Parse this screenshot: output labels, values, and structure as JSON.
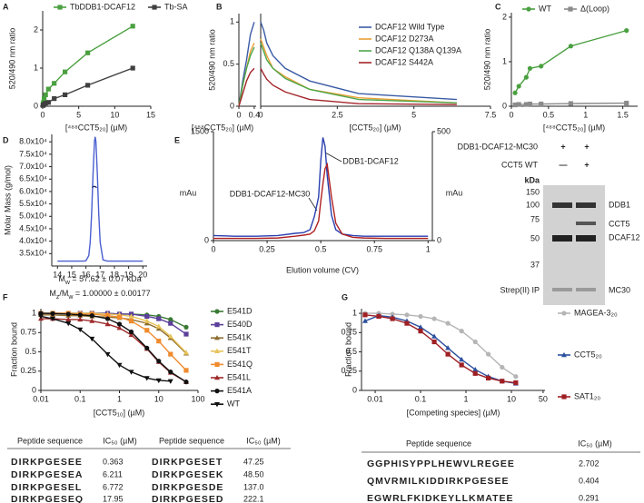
{
  "chart_data": [
    {
      "type": "line",
      "panel": "A",
      "ylabel": "520/490 nm ratio",
      "xlabel": "[⁴⁸⁸CCT5₂₀] (µM)",
      "x": [
        0.05,
        0.1,
        0.2,
        0.4,
        0.8,
        1.6,
        3.1,
        6.25,
        12.5
      ],
      "series": [
        {
          "name": "TbDDB1-DCAF12",
          "color": "#4aa040",
          "marker": "square",
          "values": [
            0.05,
            0.1,
            0.2,
            0.3,
            0.45,
            0.6,
            0.9,
            1.4,
            2.1
          ]
        },
        {
          "name": "Tb-SA",
          "color": "#404040",
          "marker": "square",
          "values": [
            0.02,
            0.03,
            0.05,
            0.08,
            0.1,
            0.2,
            0.3,
            0.55,
            1.0
          ]
        }
      ],
      "xlim": [
        0,
        15
      ],
      "ylim": [
        0,
        2.5
      ],
      "xticks": [
        0,
        5,
        10,
        15
      ],
      "yticks": [
        0,
        1,
        2
      ],
      "legend": "top"
    },
    {
      "type": "line",
      "panel": "B",
      "ylabel": "520/490 nm ratio",
      "xlabel": "[⁴⁸⁸CCT5₂₀] (µM)",
      "x": [
        0,
        0.1,
        0.2,
        0.3,
        0.4
      ],
      "series": [
        {
          "color": "#3b5ba5",
          "values": [
            0,
            0.3,
            0.55,
            0.85,
            1.0
          ]
        },
        {
          "color": "#eaa035",
          "values": [
            0,
            0.25,
            0.45,
            0.65,
            0.75
          ]
        },
        {
          "color": "#4da64a",
          "values": [
            0,
            0.25,
            0.45,
            0.6,
            0.7
          ]
        },
        {
          "color": "#a3242a",
          "values": [
            0,
            0.15,
            0.3,
            0.4,
            0.45
          ]
        }
      ],
      "xlim": [
        0,
        0.45
      ],
      "ylim": [
        0,
        1.1
      ],
      "xticks": [
        0,
        0.4
      ],
      "yticks": [
        0,
        0.5,
        1
      ]
    },
    {
      "type": "line",
      "xlabel": "[CCT5₂₀] (µM)",
      "x": [
        0,
        0.1,
        0.2,
        0.4,
        0.8,
        1.6,
        3.2,
        6.4
      ],
      "series": [
        {
          "name": "DCAF12 Wild Type",
          "color": "#3b5ba5",
          "values": [
            1.0,
            0.9,
            0.75,
            0.6,
            0.45,
            0.3,
            0.15,
            0.08
          ]
        },
        {
          "name": "DCAF12 D273A",
          "color": "#eaa035",
          "values": [
            0.8,
            0.7,
            0.6,
            0.45,
            0.35,
            0.2,
            0.1,
            0.04
          ]
        },
        {
          "name": "DCAF12 Q138A Q139A",
          "color": "#4da64a",
          "values": [
            0.75,
            0.65,
            0.55,
            0.45,
            0.33,
            0.2,
            0.08,
            0.04
          ]
        },
        {
          "name": "DCAF12 S442A",
          "color": "#a3242a",
          "values": [
            0.45,
            0.38,
            0.32,
            0.25,
            0.17,
            0.08,
            0.03,
            0.02
          ]
        }
      ],
      "xlim": [
        0,
        7.5
      ],
      "ylim": [
        0,
        1.1
      ],
      "xticks": [
        0,
        2.5,
        5,
        7.5
      ],
      "legend": "upper right"
    },
    {
      "type": "line",
      "panel": "C",
      "ylabel": "520/490 nm ratio",
      "xlabel": "[⁴⁸⁸CCT5₂₀] (µM)",
      "x": [
        0.05,
        0.1,
        0.2,
        0.25,
        0.4,
        0.8,
        1.55
      ],
      "series": [
        {
          "name": "WT",
          "color": "#4aa040",
          "marker": "circle",
          "values": [
            0.3,
            0.45,
            0.65,
            0.85,
            0.9,
            1.35,
            1.7
          ]
        },
        {
          "name": "Δ(Loop)",
          "color": "#8a8a8a",
          "marker": "square",
          "values": [
            0.03,
            0.04,
            0.04,
            0.05,
            0.05,
            0.06,
            0.07
          ]
        }
      ],
      "xlim": [
        0,
        1.7
      ],
      "ylim": [
        0,
        2.1
      ],
      "xticks": [
        0,
        0.5,
        1,
        1.5
      ],
      "yticks": [
        0,
        1,
        2
      ],
      "legend": "top"
    },
    {
      "type": "line",
      "panel": "D",
      "ylabel": "Molar Mass (g/mol)",
      "series": [
        {
          "color": "#4b5fd0",
          "x": [
            14,
            15,
            15.8,
            16,
            16.2,
            16.3,
            16.4,
            16.5,
            16.6,
            16.65,
            16.7,
            16.8,
            16.9,
            17,
            17.2,
            17.5,
            18,
            19,
            20
          ],
          "values": [
            32000,
            32000,
            32000,
            32100,
            34200,
            39600,
            51000,
            67300,
            80100,
            82000,
            80100,
            67300,
            51000,
            39600,
            32500,
            32000,
            32000,
            32000,
            32000
          ]
        },
        {
          "color": "#1f2a6b",
          "x": [
            16.45,
            16.5,
            16.55,
            16.6,
            16.65,
            16.7,
            16.75
          ],
          "values": [
            61500,
            62000,
            62000,
            62000,
            62000,
            61800,
            61500
          ]
        }
      ],
      "xlim": [
        13.6,
        20.3
      ],
      "ylim": [
        30000,
        83000
      ],
      "xticks": [
        14,
        15,
        16,
        17,
        18,
        19,
        20
      ],
      "yticks": [
        {
          "value": 35000,
          "label": "3.5x10⁴"
        },
        {
          "value": 40000,
          "label": "4.0x10⁴"
        },
        {
          "value": 45000,
          "label": "4.5x10⁴"
        },
        {
          "value": 50000,
          "label": "5.0x10⁴"
        },
        {
          "value": 55000,
          "label": "5.5x10⁴"
        },
        {
          "value": 60000,
          "label": "6.0x10⁴"
        },
        {
          "value": 65000,
          "label": "6.5x10⁴"
        },
        {
          "value": 70000,
          "label": "7.0x10⁴"
        },
        {
          "value": 75000,
          "label": "7.5x10⁴"
        },
        {
          "value": 80000,
          "label": "8.0x10⁴"
        }
      ],
      "annotations": [
        [
          "M",
          "w",
          " = 57.62 ± 0.07 kDa"
        ],
        [
          "M",
          "z",
          "/M",
          "w",
          " = 1.00000 ± 0.00177"
        ]
      ]
    },
    {
      "type": "line",
      "panel": "E",
      "ylabel": "mAu",
      "y2label": "mAu",
      "xlabel": "Elution volume (CV)",
      "x": [
        0,
        0.1,
        0.2,
        0.3,
        0.38,
        0.42,
        0.45,
        0.47,
        0.49,
        0.5,
        0.51,
        0.52,
        0.53,
        0.55,
        0.57,
        0.6,
        0.65,
        0.7,
        0.8,
        0.9,
        1.0
      ],
      "series": [
        {
          "color": "#2a3fb0",
          "values": [
            70,
            60,
            60,
            70,
            100,
            110,
            150,
            330,
            600,
            1100,
            1420,
            1300,
            900,
            350,
            150,
            90,
            70,
            60,
            60,
            60,
            60
          ]
        },
        {
          "color": "#b02020",
          "axis": "y2",
          "values": [
            10,
            10,
            10,
            12,
            20,
            25,
            30,
            45,
            90,
            180,
            260,
            330,
            350,
            200,
            80,
            30,
            15,
            12,
            10,
            10,
            10
          ]
        }
      ],
      "xlim": [
        0,
        1.02
      ],
      "ylim": [
        0,
        1500
      ],
      "y2lim": [
        0,
        500
      ],
      "xticks": [
        0,
        0.25,
        0.5,
        0.75,
        1
      ],
      "yticks": [
        0,
        1500
      ],
      "y2ticks": [
        0,
        500
      ],
      "annotations": [
        "DDB1-DCAF12",
        "DDB1-DCAF12-MC30"
      ]
    },
    {
      "type": "line",
      "panel": "F",
      "ylabel": "Fraction bound",
      "xlabel": "[CCT5₁₀] (µM)",
      "xscale": "log",
      "x": [
        0.01,
        0.02,
        0.05,
        0.1,
        0.2,
        0.5,
        1,
        2,
        5,
        10,
        20,
        50
      ],
      "series": [
        {
          "name": "E541D",
          "color": "#3a7a34",
          "marker": "circle",
          "values": [
            1,
            1,
            1,
            1,
            1,
            1,
            0.99,
            0.99,
            0.98,
            0.96,
            0.92,
            0.82
          ]
        },
        {
          "name": "E540D",
          "color": "#5b3f9a",
          "marker": "square",
          "values": [
            1,
            1,
            1,
            1,
            1,
            1,
            0.99,
            0.99,
            0.96,
            0.93,
            0.87,
            0.73
          ]
        },
        {
          "name": "E541K",
          "color": "#8c6d2e",
          "marker": "triangle-up",
          "values": [
            0.98,
            0.98,
            0.97,
            0.97,
            0.96,
            0.95,
            0.94,
            0.92,
            0.87,
            0.8,
            0.68,
            0.48
          ]
        },
        {
          "name": "E541T",
          "color": "#e8c35a",
          "marker": "triangle-up",
          "values": [
            1,
            1,
            1,
            1,
            1,
            0.99,
            0.98,
            0.96,
            0.9,
            0.83,
            0.7,
            0.49
          ]
        },
        {
          "name": "E541Q",
          "color": "#f08b2e",
          "marker": "square",
          "values": [
            1,
            1,
            1,
            0.99,
            0.99,
            0.97,
            0.95,
            0.9,
            0.78,
            0.64,
            0.47,
            0.26
          ]
        },
        {
          "name": "E541L",
          "color": "#9e2a2a",
          "marker": "triangle-up",
          "values": [
            0.93,
            0.93,
            0.92,
            0.92,
            0.9,
            0.86,
            0.81,
            0.72,
            0.54,
            0.37,
            0.23,
            0.11
          ]
        },
        {
          "name": "E541A",
          "color": "#111111",
          "marker": "circle",
          "values": [
            1.0,
            0.997,
            0.99,
            0.98,
            0.97,
            0.93,
            0.86,
            0.76,
            0.55,
            0.38,
            0.24,
            0.11
          ]
        },
        {
          "name": "WT",
          "color": "#111111",
          "marker": "triangle-down",
          "values": [
            0.96,
            0.93,
            0.87,
            0.79,
            0.67,
            0.47,
            0.33,
            0.24,
            0.16,
            0.13,
            0.12,
            null
          ]
        }
      ],
      "xlim": [
        0.01,
        100
      ],
      "ylim": [
        0,
        1.06
      ],
      "xticks": [
        0.01,
        0.1,
        1,
        10,
        100
      ],
      "yticks": [
        0,
        0.25,
        0.5,
        0.75,
        1
      ],
      "legend": "right"
    },
    {
      "type": "line",
      "panel": "G",
      "ylabel": "Fraction bound",
      "xlabel": "[Competing species] (µM)",
      "xscale": "log",
      "x": [
        0.006,
        0.012,
        0.024,
        0.05,
        0.1,
        0.2,
        0.4,
        0.8,
        1.6,
        3.1,
        6.25,
        12.5
      ],
      "series": [
        {
          "name": "MAGEA-3₂₀",
          "color": "#b5b5b5",
          "marker": "circle",
          "values": [
            1,
            1,
            0.99,
            0.98,
            0.96,
            0.93,
            0.87,
            0.77,
            0.63,
            0.47,
            0.3,
            0.18
          ]
        },
        {
          "name": "CCT5₂₀",
          "color": "#2c4f9e",
          "marker": "triangle-up",
          "values": [
            0.9,
            0.97,
            0.95,
            0.9,
            0.82,
            0.7,
            0.55,
            0.4,
            0.27,
            0.18,
            0.12,
            0.09
          ]
        },
        {
          "name": "SAT1₂₀",
          "color": "#9e2024",
          "marker": "square",
          "values": [
            0.98,
            0.96,
            0.93,
            0.87,
            0.77,
            0.63,
            0.47,
            0.33,
            0.22,
            0.16,
            0.12,
            0.1
          ]
        }
      ],
      "xlim": [
        0.005,
        55
      ],
      "ylim": [
        0,
        1.06
      ],
      "xticks": [
        0.01,
        0.1,
        1,
        10,
        50
      ],
      "yticks": [
        0,
        0.25,
        0.5,
        0.75,
        1
      ],
      "legend": "right"
    }
  ],
  "gel": {
    "rows": [
      {
        "label": "DDB1-DCAF12-MC30",
        "lanes": [
          "+",
          "+"
        ]
      },
      {
        "label": "CCT5 WT",
        "lanes": [
          "—",
          "+"
        ]
      }
    ],
    "unit": "kDa",
    "markers": [
      150,
      100,
      75,
      50,
      37
    ],
    "bands": [
      "DDB1",
      "CCT5",
      "DCAF12",
      "MC30"
    ],
    "caption": "Strep(II) IP"
  },
  "tables": [
    {
      "columns": [
        "Peptide sequence",
        "IC₅₀ (µM)",
        "Peptide sequence",
        "IC₅₀ (µM)"
      ],
      "rows": [
        [
          "DIRKPGESEE",
          "0.363",
          "DIRKPGESET",
          "47.25"
        ],
        [
          "DIRKPGESEA",
          "6.211",
          "DIRKPGESEK",
          "48.50"
        ],
        [
          "DIRKPGESEL",
          "6.772",
          "DIRKPGESDE",
          "137.0"
        ],
        [
          "DIRKPGESEQ",
          "17.95",
          "DIRKPGESED",
          "222.1"
        ]
      ],
      "colors": [
        [
          "#111111",
          "#e8c35a"
        ],
        [
          "#1a1a2e",
          "#8c6d2e"
        ],
        [
          "#9e2a2a",
          "#5b3f9a"
        ],
        [
          "#f08b2e",
          "#3a7a34"
        ]
      ]
    },
    {
      "columns": [
        "Peptide sequence",
        "IC₅₀ (µM)"
      ],
      "rows": [
        [
          "GGPHISYPPLHEWVLREGEE",
          "2.702"
        ],
        [
          "QMVRMILKIDDIRKPGESEE",
          "0.404"
        ],
        [
          "EGWRLFKIDKEYLLKMATEE",
          "0.291"
        ]
      ],
      "colors": [
        "#b5b5b5",
        "#2c4f9e",
        "#9e2024"
      ]
    }
  ]
}
